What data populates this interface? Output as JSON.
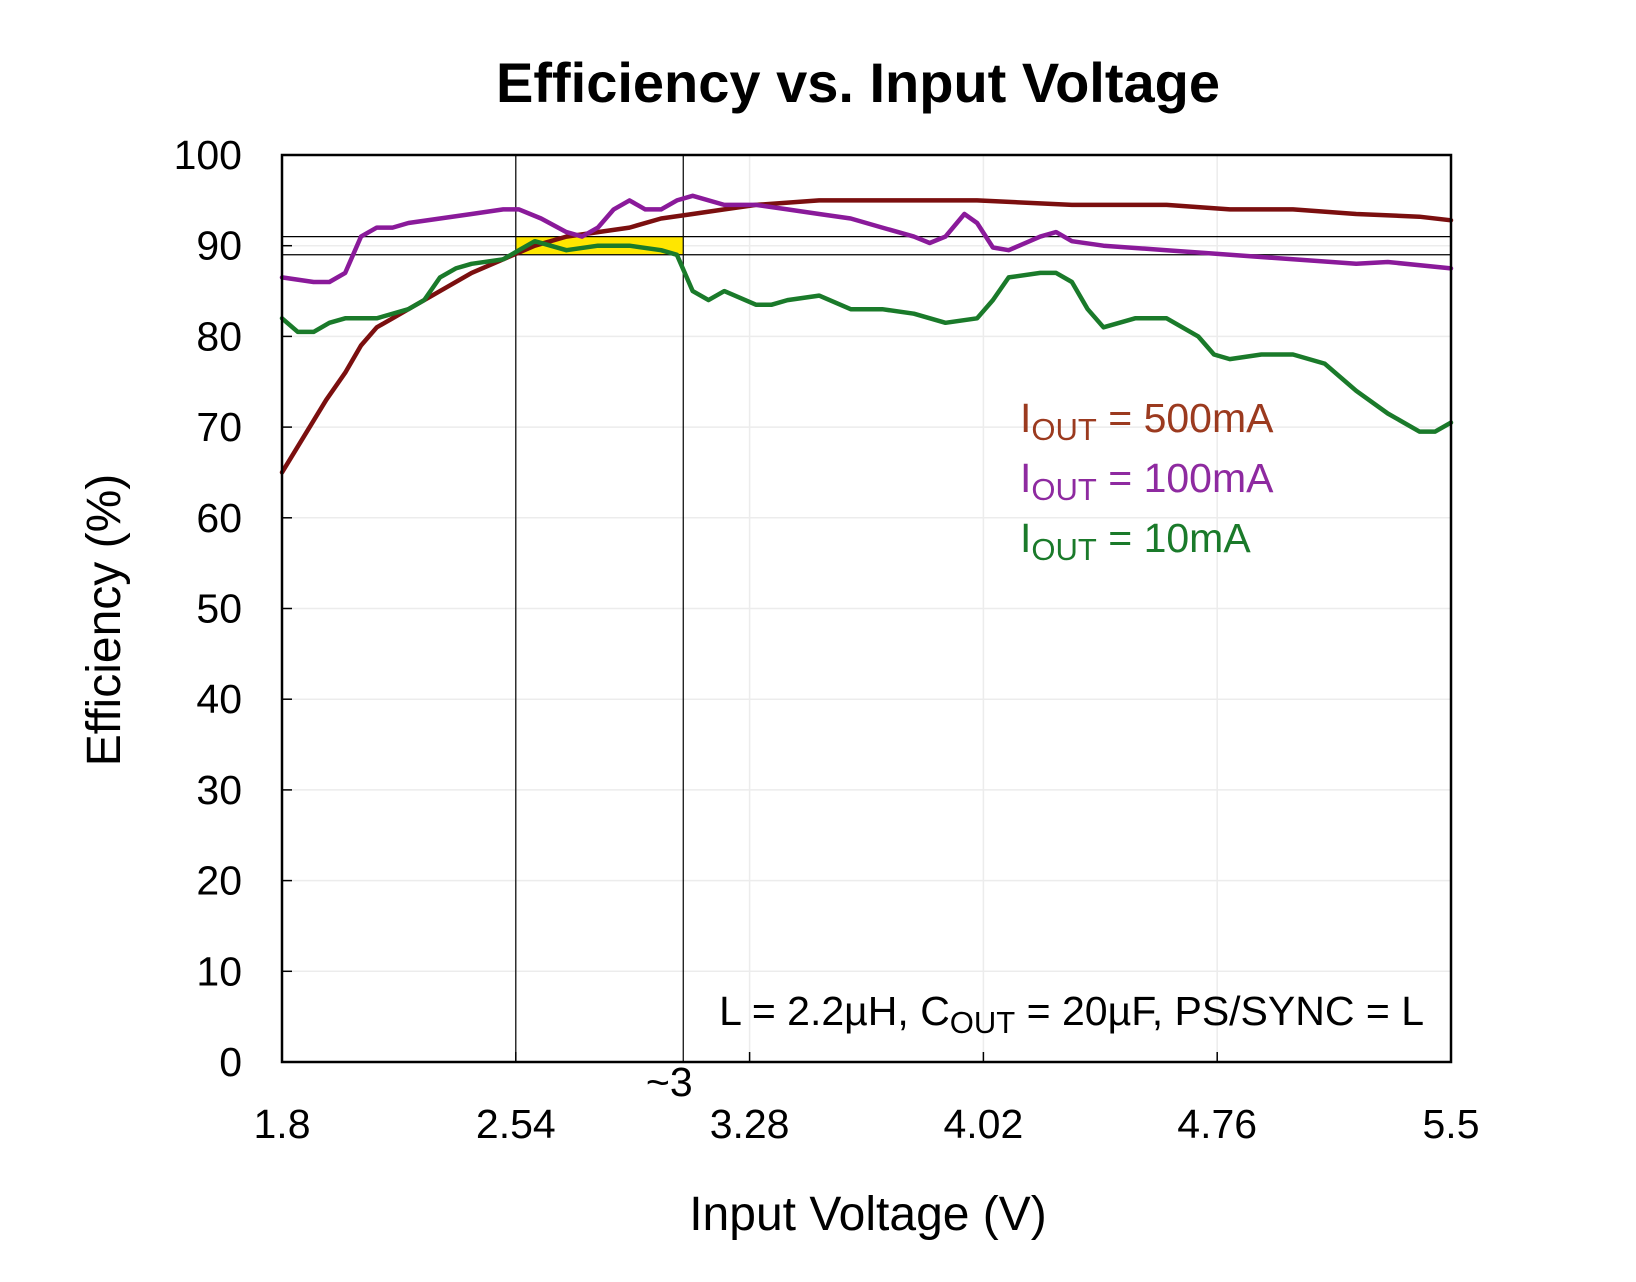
{
  "chart_data": {
    "type": "line",
    "title": "Efficiency vs. Input Voltage",
    "xlabel": "Input Voltage (V)",
    "ylabel": "Efficiency (%)",
    "xlim": [
      1.8,
      5.5
    ],
    "ylim": [
      0,
      100
    ],
    "xticks": [
      "1.8",
      "2.54",
      "3.28",
      "4.02",
      "4.76",
      "5.5"
    ],
    "xtick_values": [
      1.8,
      2.54,
      3.28,
      4.02,
      4.76,
      5.5
    ],
    "yticks": [
      "0",
      "10",
      "20",
      "30",
      "40",
      "50",
      "60",
      "70",
      "80",
      "90",
      "100"
    ],
    "ytick_values": [
      0,
      10,
      20,
      30,
      40,
      50,
      60,
      70,
      80,
      90,
      100
    ],
    "grid": true,
    "extra_xtick_label": "~3",
    "extra_xtick_value": 3.07,
    "reference_vlines": [
      2.54,
      3.07
    ],
    "reference_hlines": [
      89.0,
      91.0
    ],
    "highlight_band": {
      "x": [
        2.54,
        3.07
      ],
      "y": [
        89.0,
        91.0
      ],
      "color": "#ffe600"
    },
    "annotation": {
      "text_l": "L = 2.2µH, C",
      "text_sub": "OUT",
      "text_r": " = 20µF, PS/SYNC = L"
    },
    "series": [
      {
        "name": "IOUT = 500mA",
        "label_prefix": "I",
        "label_sub": "OUT",
        "label_value": " = 500mA",
        "color": "#7b0f0f",
        "label_color": "#9b3a1f",
        "x": [
          1.8,
          1.87,
          1.94,
          2.0,
          2.05,
          2.1,
          2.15,
          2.2,
          2.3,
          2.4,
          2.5,
          2.6,
          2.7,
          2.8,
          2.9,
          3.0,
          3.1,
          3.2,
          3.3,
          3.5,
          3.8,
          4.0,
          4.3,
          4.6,
          4.8,
          5.0,
          5.2,
          5.4,
          5.5
        ],
        "y": [
          65,
          69,
          73,
          76,
          79,
          81,
          82,
          83,
          85,
          87,
          88.5,
          90,
          91,
          91.5,
          92,
          93,
          93.5,
          94,
          94.5,
          95,
          95,
          95,
          94.5,
          94.5,
          94,
          94,
          93.5,
          93.2,
          92.8
        ]
      },
      {
        "name": "IOUT = 100mA",
        "label_prefix": "I",
        "label_sub": "OUT",
        "label_value": " = 100mA",
        "color": "#8a1a9a",
        "label_color": "#8e2aa0",
        "x": [
          1.8,
          1.9,
          1.95,
          2.0,
          2.05,
          2.1,
          2.15,
          2.2,
          2.3,
          2.4,
          2.5,
          2.55,
          2.62,
          2.7,
          2.75,
          2.8,
          2.85,
          2.9,
          2.95,
          3.0,
          3.05,
          3.1,
          3.2,
          3.3,
          3.4,
          3.5,
          3.6,
          3.7,
          3.8,
          3.85,
          3.9,
          3.96,
          4.0,
          4.05,
          4.1,
          4.2,
          4.25,
          4.3,
          4.4,
          4.6,
          4.8,
          5.0,
          5.2,
          5.3,
          5.5
        ],
        "y": [
          86.5,
          86,
          86,
          87,
          91,
          92,
          92,
          92.5,
          93,
          93.5,
          94,
          94,
          93,
          91.5,
          91,
          92,
          94,
          95,
          94,
          94,
          95,
          95.5,
          94.5,
          94.5,
          94,
          93.5,
          93,
          92,
          91,
          90.3,
          91,
          93.5,
          92.5,
          89.8,
          89.5,
          91,
          91.5,
          90.5,
          90,
          89.5,
          89,
          88.5,
          88,
          88.2,
          87.5
        ]
      },
      {
        "name": "IOUT = 10mA",
        "label_prefix": "I",
        "label_sub": "OUT",
        "label_value": " = 10mA",
        "color": "#1a7a2a",
        "label_color": "#1a7a2a",
        "x": [
          1.8,
          1.85,
          1.9,
          1.95,
          2.0,
          2.1,
          2.2,
          2.25,
          2.3,
          2.35,
          2.4,
          2.5,
          2.55,
          2.6,
          2.7,
          2.8,
          2.9,
          3.0,
          3.05,
          3.1,
          3.15,
          3.2,
          3.3,
          3.35,
          3.4,
          3.5,
          3.6,
          3.7,
          3.8,
          3.9,
          4.0,
          4.05,
          4.1,
          4.2,
          4.25,
          4.3,
          4.35,
          4.4,
          4.5,
          4.6,
          4.7,
          4.75,
          4.8,
          4.9,
          5.0,
          5.1,
          5.2,
          5.3,
          5.4,
          5.45,
          5.5
        ],
        "y": [
          82,
          80.5,
          80.5,
          81.5,
          82,
          82,
          83,
          84,
          86.5,
          87.5,
          88,
          88.5,
          89.5,
          90.5,
          89.5,
          90,
          90,
          89.5,
          89,
          85,
          84,
          85,
          83.5,
          83.5,
          84,
          84.5,
          83,
          83,
          82.5,
          81.5,
          82,
          84,
          86.5,
          87,
          87,
          86,
          83,
          81,
          82,
          82,
          80,
          78,
          77.5,
          78,
          78,
          77,
          74,
          71.5,
          69.5,
          69.5,
          70.5
        ]
      }
    ]
  }
}
